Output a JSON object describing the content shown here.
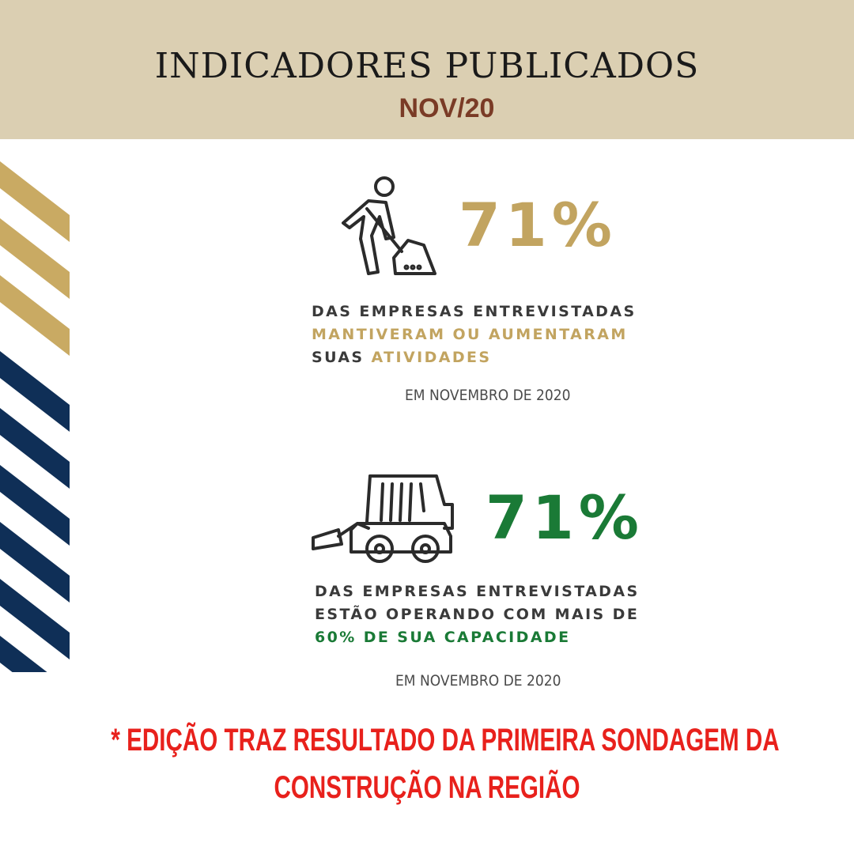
{
  "header": {
    "title": "INDICADORES PUBLICADOS",
    "subtitle": "NOV/20"
  },
  "colors": {
    "header_bg": "#dbcfb2",
    "gold": "#c2a460",
    "navy": "#0f2f57",
    "green": "#1a7a36",
    "footnote_red": "#e8211c"
  },
  "indicator1": {
    "icon": "worker-shovel-icon",
    "percent": "71%",
    "line1": "DAS EMPRESAS ENTREVISTADAS",
    "line2": "MANTIVERAM OU AUMENTARAM",
    "line3_a": "SUAS",
    "line3_b": "ATIVIDADES",
    "date": "EM NOVEMBRO DE 2020"
  },
  "indicator2": {
    "icon": "skid-steer-loader-icon",
    "percent": "71%",
    "line1": "DAS EMPRESAS ENTREVISTADAS",
    "line2": "ESTÃO OPERANDO COM MAIS DE",
    "line3": "60% DE SUA CAPACIDADE",
    "date": "EM NOVEMBRO DE 2020"
  },
  "footnote": {
    "line1": "* EDIÇÃO TRAZ RESULTADO DA PRIMEIRA SONDAGEM DA",
    "line2": "CONSTRUÇÃO NA REGIÃO"
  }
}
